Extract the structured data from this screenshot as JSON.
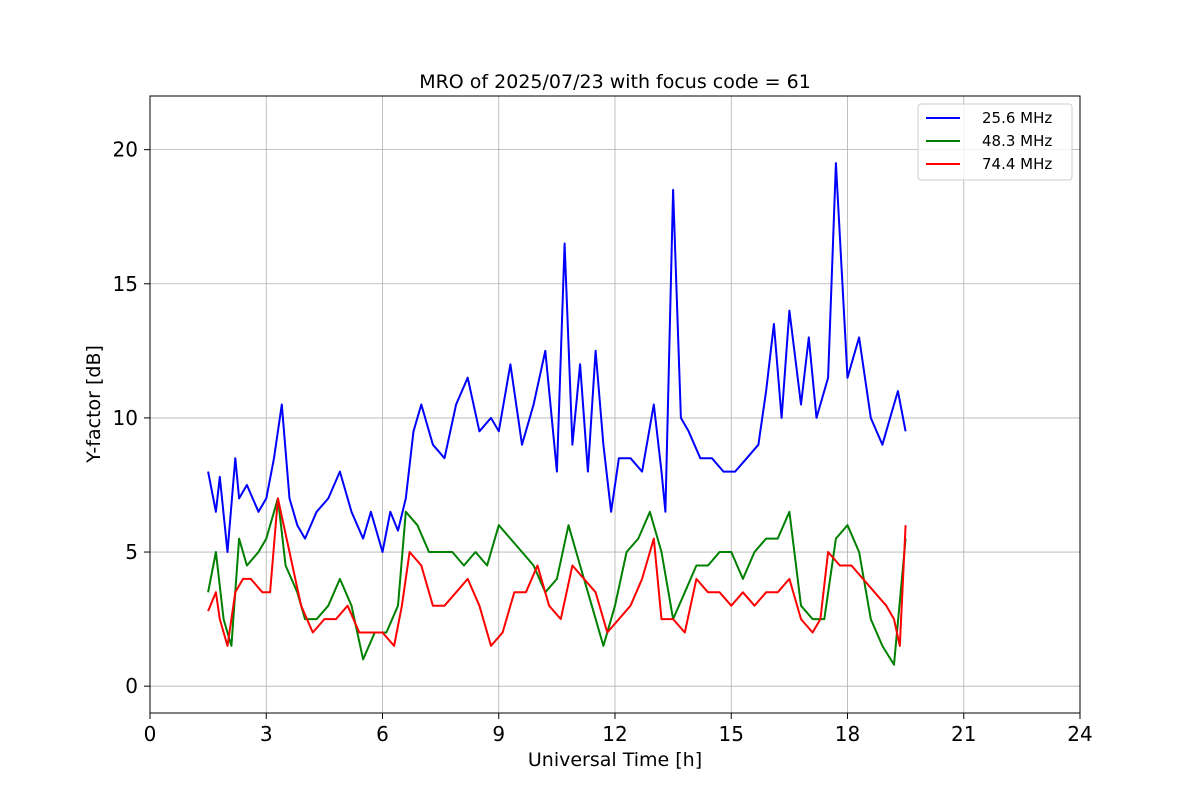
{
  "chart_data": {
    "type": "line",
    "title": "MRO of 2025/07/23 with focus code = 61",
    "xlabel": "Universal Time [h]",
    "ylabel": "Y-factor [dB]",
    "xlim": [
      0,
      24
    ],
    "ylim": [
      -1,
      22
    ],
    "xticks": [
      0,
      3,
      6,
      9,
      12,
      15,
      18,
      21,
      24
    ],
    "yticks": [
      0,
      5,
      10,
      15,
      20
    ],
    "grid": true,
    "legend_position": "top-right",
    "series": [
      {
        "name": "25.6 MHz",
        "color": "#0000ff",
        "x": [
          1.5,
          1.7,
          1.8,
          2.0,
          2.2,
          2.3,
          2.5,
          2.8,
          3.0,
          3.2,
          3.4,
          3.6,
          3.8,
          4.0,
          4.3,
          4.6,
          4.9,
          5.2,
          5.5,
          5.7,
          6.0,
          6.2,
          6.4,
          6.6,
          6.8,
          7.0,
          7.3,
          7.6,
          7.9,
          8.2,
          8.5,
          8.8,
          9.0,
          9.3,
          9.6,
          9.9,
          10.2,
          10.5,
          10.7,
          10.9,
          11.1,
          11.3,
          11.5,
          11.7,
          11.9,
          12.1,
          12.4,
          12.7,
          13.0,
          13.2,
          13.3,
          13.5,
          13.7,
          13.9,
          14.2,
          14.5,
          14.8,
          15.1,
          15.4,
          15.7,
          15.9,
          16.1,
          16.3,
          16.5,
          16.8,
          17.0,
          17.2,
          17.5,
          17.7,
          18.0,
          18.3,
          18.6,
          18.9,
          19.1,
          19.3,
          19.5
        ],
        "values": [
          8.0,
          6.5,
          7.8,
          5.0,
          8.5,
          7.0,
          7.5,
          6.5,
          7.0,
          8.5,
          10.5,
          7.0,
          6.0,
          5.5,
          6.5,
          7.0,
          8.0,
          6.5,
          5.5,
          6.5,
          5.0,
          6.5,
          5.8,
          7.0,
          9.5,
          10.5,
          9.0,
          8.5,
          10.5,
          11.5,
          9.5,
          10.0,
          9.5,
          12.0,
          9.0,
          10.5,
          12.5,
          8.0,
          16.5,
          9.0,
          12.0,
          8.0,
          12.5,
          9.0,
          6.5,
          8.5,
          8.5,
          8.0,
          10.5,
          8.0,
          6.5,
          18.5,
          10.0,
          9.5,
          8.5,
          8.5,
          8.0,
          8.0,
          8.5,
          9.0,
          11.0,
          13.5,
          10.0,
          14.0,
          10.5,
          13.0,
          10.0,
          11.5,
          19.5,
          11.5,
          13.0,
          10.0,
          9.0,
          10.0,
          11.0,
          9.5
        ]
      },
      {
        "name": "48.3 MHz",
        "color": "#008000",
        "x": [
          1.5,
          1.7,
          1.9,
          2.1,
          2.3,
          2.5,
          2.8,
          3.0,
          3.3,
          3.5,
          3.8,
          4.0,
          4.3,
          4.6,
          4.9,
          5.2,
          5.5,
          5.8,
          6.1,
          6.4,
          6.6,
          6.9,
          7.2,
          7.5,
          7.8,
          8.1,
          8.4,
          8.7,
          9.0,
          9.3,
          9.6,
          9.9,
          10.2,
          10.5,
          10.8,
          11.1,
          11.4,
          11.7,
          12.0,
          12.3,
          12.6,
          12.9,
          13.2,
          13.5,
          13.8,
          14.1,
          14.4,
          14.7,
          15.0,
          15.3,
          15.6,
          15.9,
          16.2,
          16.5,
          16.8,
          17.1,
          17.4,
          17.7,
          18.0,
          18.3,
          18.6,
          18.9,
          19.2,
          19.5
        ],
        "values": [
          3.5,
          5.0,
          2.5,
          1.5,
          5.5,
          4.5,
          5.0,
          5.5,
          7.0,
          4.5,
          3.5,
          2.5,
          2.5,
          3.0,
          4.0,
          3.0,
          1.0,
          2.0,
          2.0,
          3.0,
          6.5,
          6.0,
          5.0,
          5.0,
          5.0,
          4.5,
          5.0,
          4.5,
          6.0,
          5.5,
          5.0,
          4.5,
          3.5,
          4.0,
          6.0,
          4.5,
          3.0,
          1.5,
          3.0,
          5.0,
          5.5,
          6.5,
          5.0,
          2.5,
          3.5,
          4.5,
          4.5,
          5.0,
          5.0,
          4.0,
          5.0,
          5.5,
          5.5,
          6.5,
          3.0,
          2.5,
          2.5,
          5.5,
          6.0,
          5.0,
          2.5,
          1.5,
          0.8,
          5.5
        ]
      },
      {
        "name": "74.4 MHz",
        "color": "#ff0000",
        "x": [
          1.5,
          1.7,
          1.8,
          2.0,
          2.2,
          2.4,
          2.6,
          2.9,
          3.1,
          3.3,
          3.6,
          3.9,
          4.2,
          4.5,
          4.8,
          5.1,
          5.4,
          5.7,
          6.0,
          6.3,
          6.5,
          6.7,
          7.0,
          7.3,
          7.6,
          7.9,
          8.2,
          8.5,
          8.8,
          9.1,
          9.4,
          9.7,
          10.0,
          10.3,
          10.6,
          10.9,
          11.2,
          11.5,
          11.8,
          12.1,
          12.4,
          12.7,
          13.0,
          13.2,
          13.5,
          13.8,
          14.1,
          14.4,
          14.7,
          15.0,
          15.3,
          15.6,
          15.9,
          16.2,
          16.5,
          16.8,
          17.1,
          17.3,
          17.5,
          17.8,
          18.1,
          18.4,
          18.7,
          19.0,
          19.2,
          19.35,
          19.5
        ],
        "values": [
          2.8,
          3.5,
          2.5,
          1.5,
          3.5,
          4.0,
          4.0,
          3.5,
          3.5,
          7.0,
          5.0,
          3.0,
          2.0,
          2.5,
          2.5,
          3.0,
          2.0,
          2.0,
          2.0,
          1.5,
          3.0,
          5.0,
          4.5,
          3.0,
          3.0,
          3.5,
          4.0,
          3.0,
          1.5,
          2.0,
          3.5,
          3.5,
          4.5,
          3.0,
          2.5,
          4.5,
          4.0,
          3.5,
          2.0,
          2.5,
          3.0,
          4.0,
          5.5,
          2.5,
          2.5,
          2.0,
          4.0,
          3.5,
          3.5,
          3.0,
          3.5,
          3.0,
          3.5,
          3.5,
          4.0,
          2.5,
          2.0,
          2.5,
          5.0,
          4.5,
          4.5,
          4.0,
          3.5,
          3.0,
          2.5,
          1.5,
          6.0
        ]
      }
    ]
  }
}
